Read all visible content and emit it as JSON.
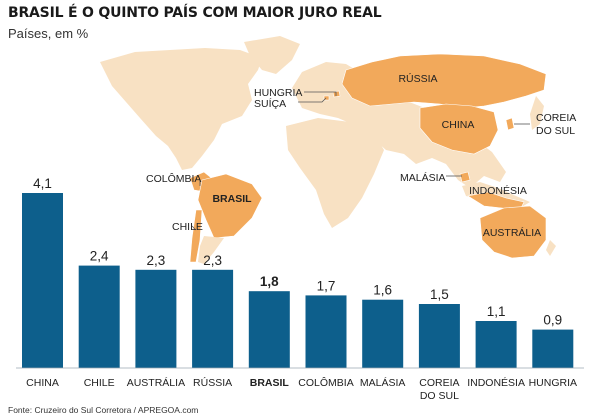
{
  "chart_data": {
    "type": "bar",
    "title": "BRASIL É O QUINTO PAÍS COM MAIOR JURO REAL",
    "subtitle": "Países, em %",
    "categories": [
      "CHINA",
      "CHILE",
      "AUSTRÁLIA",
      "RÚSSIA",
      "BRASIL",
      "COLÔMBIA",
      "MALÁSIA",
      "COREIA DO SUL",
      "INDONÉSIA",
      "HUNGRIA"
    ],
    "category_lines": [
      [
        "CHINA"
      ],
      [
        "CHILE"
      ],
      [
        "AUSTRÁLIA"
      ],
      [
        "RÚSSIA"
      ],
      [
        "BRASIL"
      ],
      [
        "COLÔMBIA"
      ],
      [
        "MALÁSIA"
      ],
      [
        "COREIA",
        "DO SUL"
      ],
      [
        "INDONÉSIA"
      ],
      [
        "HUNGRIA"
      ]
    ],
    "values": [
      4.1,
      2.4,
      2.3,
      2.3,
      1.8,
      1.7,
      1.6,
      1.5,
      1.1,
      0.9
    ],
    "value_labels": [
      "4,1",
      "2,4",
      "2,3",
      "2,3",
      "1,8",
      "1,7",
      "1,6",
      "1,5",
      "1,1",
      "0,9"
    ],
    "highlight": "BRASIL",
    "ylim": [
      0,
      4.1
    ],
    "xlabel": "",
    "ylabel": "",
    "grid": false,
    "bar_color": "#0d5f8c",
    "map": {
      "land_color": "#f8e1c3",
      "highlight_color": "#f2a95b",
      "labels": {
        "russia": "RÚSSIA",
        "china": "CHINA",
        "brasil": "BRASIL",
        "australia": "AUSTRÁLIA",
        "indonesia": "INDONÉSIA",
        "hungria": "HUNGRIA",
        "suica": "SUÍÇA",
        "coreia_line1": "COREIA",
        "coreia_line2": "DO SUL",
        "colombia": "COLÔMBIA",
        "chile": "CHILE",
        "malasia": "MALÁSIA"
      }
    }
  },
  "source": "Fonte: Cruzeiro do Sul Corretora / APREGOA.com"
}
